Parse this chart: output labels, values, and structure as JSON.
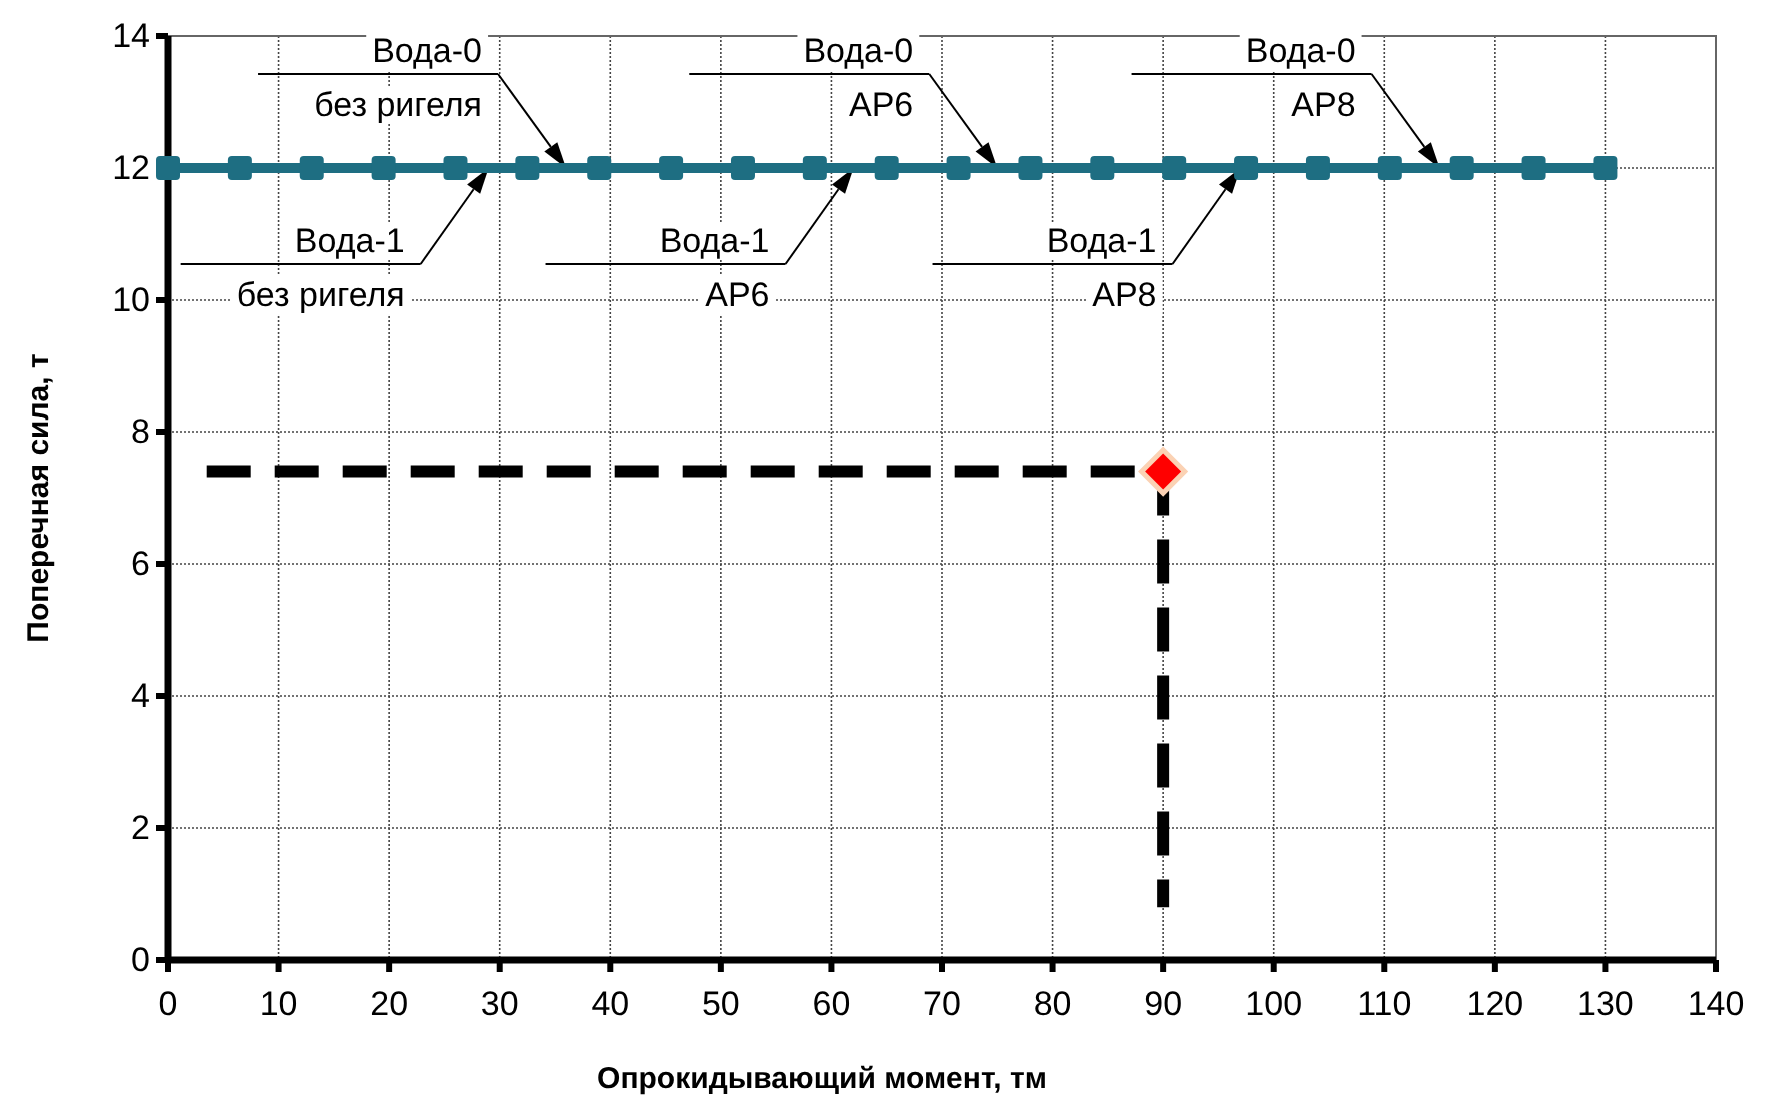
{
  "chart_data": {
    "type": "line",
    "xlabel": "Опрокидывающий момент, тм",
    "ylabel": "Поперечная сила, т",
    "xlim": [
      0,
      140
    ],
    "ylim": [
      0,
      14
    ],
    "xticks": [
      0,
      10,
      20,
      30,
      40,
      50,
      60,
      70,
      80,
      90,
      100,
      110,
      120,
      130,
      140
    ],
    "yticks": [
      0,
      2,
      4,
      6,
      8,
      10,
      12,
      14
    ],
    "grid": true,
    "series": [
      {
        "color": "#1e6e82",
        "marker": "square",
        "line_style": "solid",
        "x": [
          0,
          6.5,
          13,
          19.5,
          26,
          32.5,
          39,
          45.5,
          52,
          58.5,
          65,
          71.5,
          78,
          84.5,
          91,
          97.5,
          104,
          110.5,
          117,
          123.5,
          130
        ],
        "values": [
          12,
          12,
          12,
          12,
          12,
          12,
          12,
          12,
          12,
          12,
          12,
          12,
          12,
          12,
          12,
          12,
          12,
          12,
          12,
          12,
          12
        ]
      },
      {
        "type": "line",
        "color": "#000000",
        "marker": "none",
        "line_style": "dashed",
        "x": [
          3.5,
          90
        ],
        "values": [
          7.4,
          7.4
        ]
      },
      {
        "type": "line",
        "color": "#000000",
        "marker": "none",
        "line_style": "dashed",
        "x": [
          90,
          90
        ],
        "values": [
          7.4,
          0.8
        ]
      },
      {
        "type": "scatter",
        "color": "#ff0000",
        "marker": "diamond",
        "x": [
          90
        ],
        "values": [
          7.4
        ]
      }
    ],
    "annotations": [
      {
        "text": "Вода-0\nбез ригеля",
        "x": 36,
        "y": 12
      },
      {
        "text": "Вода-1\nбез ригеля",
        "x": 29,
        "y": 12
      },
      {
        "text": "Вода-0\nАР6",
        "x": 75,
        "y": 12
      },
      {
        "text": "Вода-1\nАР6",
        "x": 62,
        "y": 12
      },
      {
        "text": "Вода-0\nАР8",
        "x": 115,
        "y": 12
      },
      {
        "text": "Вода-1\nАР8",
        "x": 97,
        "y": 12
      }
    ]
  }
}
